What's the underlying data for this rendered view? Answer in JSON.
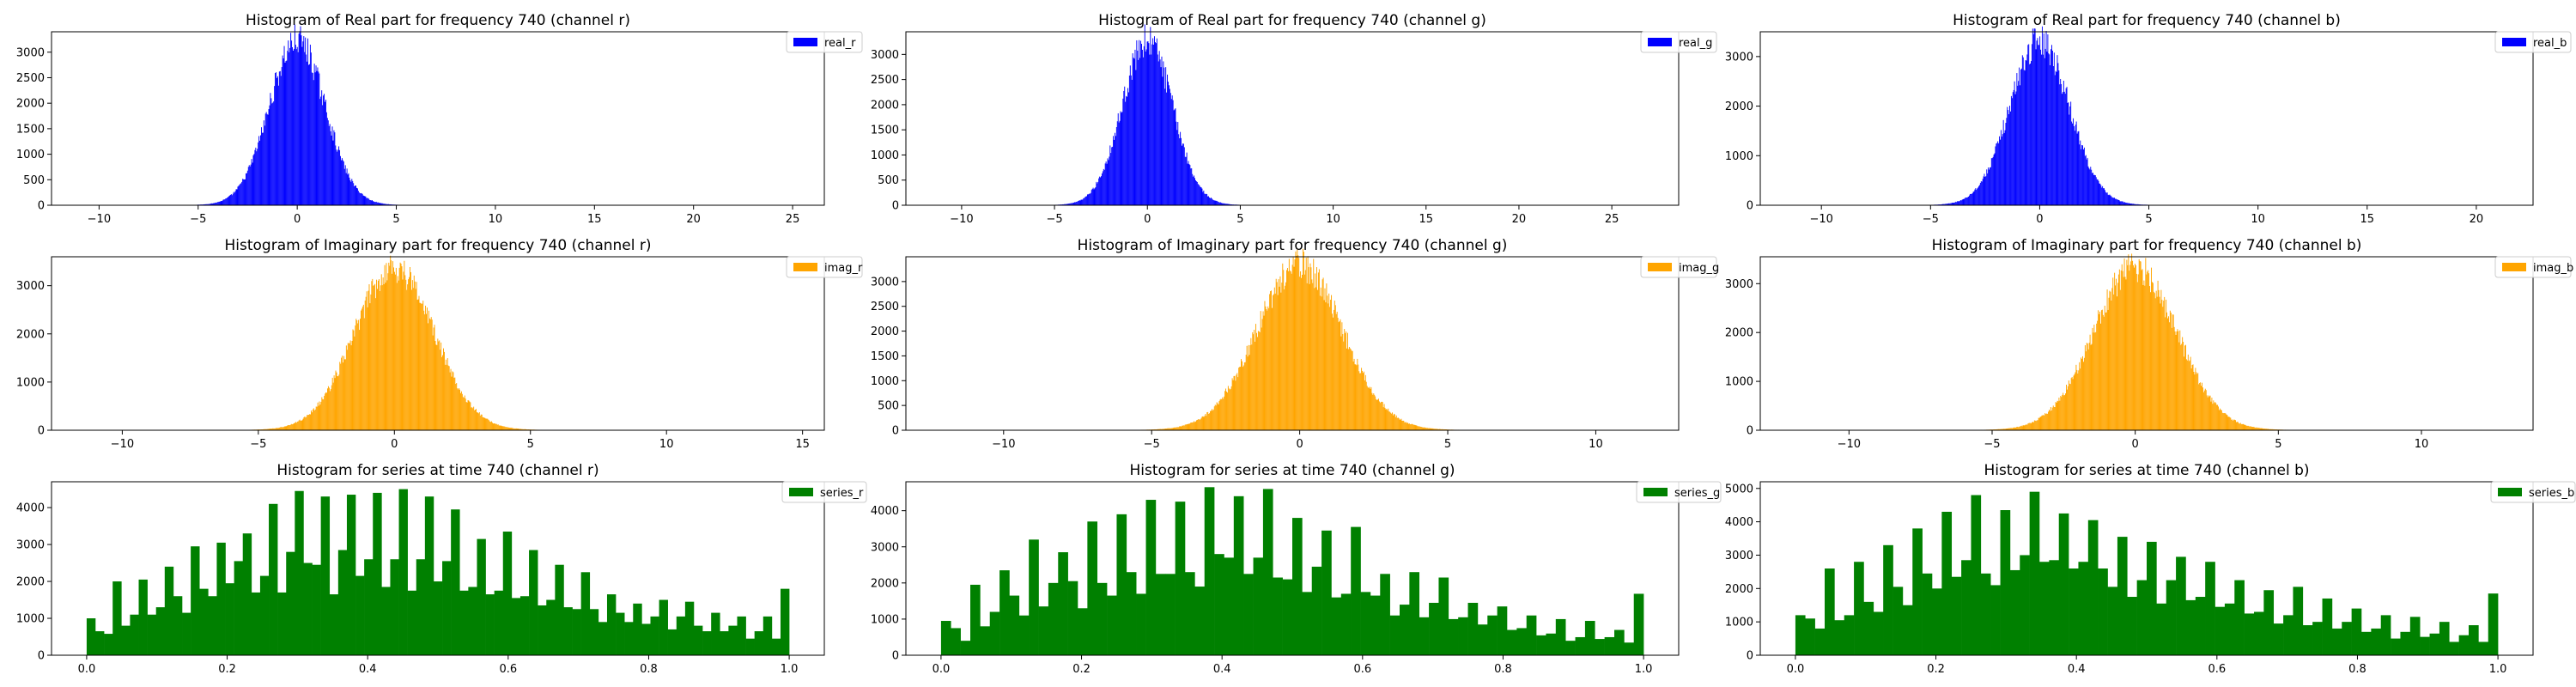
{
  "colors": {
    "real": "#0000ff",
    "imag": "#ffa500",
    "series": "#008000"
  },
  "chart_data": [
    {
      "type": "histogram",
      "title": "Histogram of Real part for frequency 740 (channel r)",
      "legend": "real_r",
      "color": "#0000ff",
      "shape": "gauss",
      "sigma": 1.4,
      "xlim": [
        -12.4,
        26.6
      ],
      "ylim": [
        0,
        3400
      ],
      "xticks": [
        -10,
        -5,
        0,
        5,
        10,
        15,
        20,
        25
      ],
      "yticks": [
        0,
        500,
        1000,
        1500,
        2000,
        2500,
        3000
      ],
      "peak": 3200,
      "range": [
        -11.2,
        25.8
      ],
      "bins": 900
    },
    {
      "type": "histogram",
      "title": "Histogram of Real part for frequency 740 (channel g)",
      "legend": "real_g",
      "color": "#0000ff",
      "shape": "gauss",
      "sigma": 1.35,
      "xlim": [
        -13,
        28.6
      ],
      "ylim": [
        0,
        3450
      ],
      "xticks": [
        -10,
        -5,
        0,
        5,
        10,
        15,
        20,
        25
      ],
      "yticks": [
        0,
        500,
        1000,
        1500,
        2000,
        2500,
        3000
      ],
      "peak": 3250,
      "range": [
        -11.5,
        27.6
      ],
      "bins": 900
    },
    {
      "type": "histogram",
      "title": "Histogram of Real part for frequency 740 (channel b)",
      "legend": "real_b",
      "color": "#0000ff",
      "shape": "gauss",
      "sigma": 1.35,
      "xlim": [
        -12.8,
        22.6
      ],
      "ylim": [
        0,
        3500
      ],
      "xticks": [
        -10,
        -5,
        0,
        5,
        10,
        15,
        20
      ],
      "yticks": [
        0,
        1000,
        2000,
        3000
      ],
      "peak": 3300,
      "range": [
        -11.2,
        21.5
      ],
      "bins": 900
    },
    {
      "type": "histogram",
      "title": "Histogram of Imaginary part for frequency 740 (channel r)",
      "legend": "imag_r",
      "color": "#ffa500",
      "shape": "gauss",
      "sigma": 1.45,
      "xlim": [
        -12.6,
        15.8
      ],
      "ylim": [
        0,
        3600
      ],
      "xticks": [
        -10,
        -5,
        0,
        5,
        10,
        15
      ],
      "yticks": [
        0,
        1000,
        2000,
        3000
      ],
      "peak": 3350,
      "range": [
        -11.8,
        15.2
      ],
      "bins": 900
    },
    {
      "type": "histogram",
      "title": "Histogram of Imaginary part for frequency 740 (channel g)",
      "legend": "imag_g",
      "color": "#ffa500",
      "shape": "gauss",
      "sigma": 1.45,
      "xlim": [
        -13.3,
        12.8
      ],
      "ylim": [
        0,
        3500
      ],
      "xticks": [
        -10,
        -5,
        0,
        5,
        10
      ],
      "yticks": [
        0,
        500,
        1000,
        1500,
        2000,
        2500,
        3000
      ],
      "peak": 3300,
      "range": [
        -12.5,
        12.2
      ],
      "bins": 900
    },
    {
      "type": "histogram",
      "title": "Histogram of Imaginary part for frequency 740 (channel b)",
      "legend": "imag_b",
      "color": "#ffa500",
      "shape": "gauss",
      "sigma": 1.45,
      "xlim": [
        -13.1,
        13.9
      ],
      "ylim": [
        0,
        3550
      ],
      "xticks": [
        -10,
        -5,
        0,
        5,
        10
      ],
      "yticks": [
        0,
        1000,
        2000,
        3000
      ],
      "peak": 3300,
      "range": [
        -12.5,
        13.2
      ],
      "bins": 900
    },
    {
      "type": "histogram",
      "title": "Histogram for series at time 740 (channel r)",
      "legend": "series_r",
      "color": "#008000",
      "shape": "bars",
      "xlim": [
        -0.05,
        1.05
      ],
      "ylim": [
        0,
        4700
      ],
      "xticks": [
        0.0,
        0.2,
        0.4,
        0.6,
        0.8,
        1.0
      ],
      "xticklabels": [
        "0.0",
        "0.2",
        "0.4",
        "0.6",
        "0.8",
        "1.0"
      ],
      "yticks": [
        0,
        1000,
        2000,
        3000,
        4000
      ],
      "values": [
        1000,
        650,
        580,
        2000,
        800,
        1100,
        2050,
        1100,
        1300,
        2400,
        1600,
        1150,
        2950,
        1800,
        1600,
        3050,
        1950,
        2550,
        3300,
        1700,
        2150,
        4100,
        1700,
        2800,
        4450,
        2500,
        2450,
        4300,
        1650,
        2850,
        4350,
        2150,
        2600,
        4400,
        1850,
        2600,
        4500,
        1750,
        2600,
        4300,
        2000,
        2550,
        3950,
        1750,
        1850,
        3150,
        1650,
        1750,
        3350,
        1550,
        1600,
        2850,
        1350,
        1500,
        2450,
        1300,
        1250,
        2250,
        1250,
        900,
        1650,
        1150,
        900,
        1400,
        850,
        1050,
        1500,
        700,
        1050,
        1450,
        800,
        650,
        1150,
        650,
        800,
        1050,
        450,
        650,
        1050,
        450,
        1800
      ]
    },
    {
      "type": "histogram",
      "title": "Histogram for series at time 740 (channel g)",
      "legend": "series_g",
      "color": "#008000",
      "shape": "bars",
      "xlim": [
        -0.05,
        1.05
      ],
      "ylim": [
        0,
        4800
      ],
      "xticks": [
        0.0,
        0.2,
        0.4,
        0.6,
        0.8,
        1.0
      ],
      "xticklabels": [
        "0.0",
        "0.2",
        "0.4",
        "0.6",
        "0.8",
        "1.0"
      ],
      "yticks": [
        0,
        1000,
        2000,
        3000,
        4000
      ],
      "values": [
        950,
        750,
        400,
        1950,
        800,
        1200,
        2350,
        1650,
        1100,
        3200,
        1350,
        2000,
        2850,
        2050,
        1300,
        3700,
        2000,
        1650,
        3900,
        2300,
        1700,
        4300,
        2250,
        2250,
        4250,
        2300,
        1900,
        4650,
        2800,
        2700,
        4400,
        2250,
        2700,
        4600,
        2150,
        2100,
        3800,
        1750,
        2450,
        3450,
        1600,
        1700,
        3550,
        1750,
        1650,
        2250,
        1100,
        1400,
        2300,
        1050,
        1450,
        2150,
        1000,
        1050,
        1450,
        850,
        1100,
        1350,
        700,
        750,
        1100,
        550,
        600,
        1000,
        400,
        500,
        950,
        450,
        500,
        700,
        350,
        1700
      ]
    },
    {
      "type": "histogram",
      "title": "Histogram for series at time 740 (channel b)",
      "legend": "series_b",
      "color": "#008000",
      "shape": "bars",
      "xlim": [
        -0.05,
        1.05
      ],
      "ylim": [
        0,
        5200
      ],
      "xticks": [
        0.0,
        0.2,
        0.4,
        0.6,
        0.8,
        1.0
      ],
      "xticklabels": [
        "0.0",
        "0.2",
        "0.4",
        "0.6",
        "0.8",
        "1.0"
      ],
      "yticks": [
        0,
        1000,
        2000,
        3000,
        4000,
        5000
      ],
      "values": [
        1200,
        1100,
        800,
        2600,
        1050,
        1200,
        2800,
        1600,
        1300,
        3300,
        2050,
        1500,
        3800,
        2450,
        2000,
        4300,
        2350,
        2850,
        4800,
        2450,
        2100,
        4350,
        2550,
        3000,
        4900,
        2800,
        2850,
        4250,
        2600,
        2800,
        4050,
        2600,
        2050,
        3550,
        1750,
        2250,
        3400,
        1550,
        2250,
        2950,
        1650,
        1750,
        2800,
        1450,
        1550,
        2250,
        1250,
        1300,
        1950,
        950,
        1200,
        2050,
        900,
        1000,
        1700,
        800,
        1000,
        1400,
        700,
        800,
        1200,
        500,
        700,
        1150,
        550,
        650,
        1000,
        400,
        600,
        900,
        400,
        1850
      ]
    }
  ]
}
